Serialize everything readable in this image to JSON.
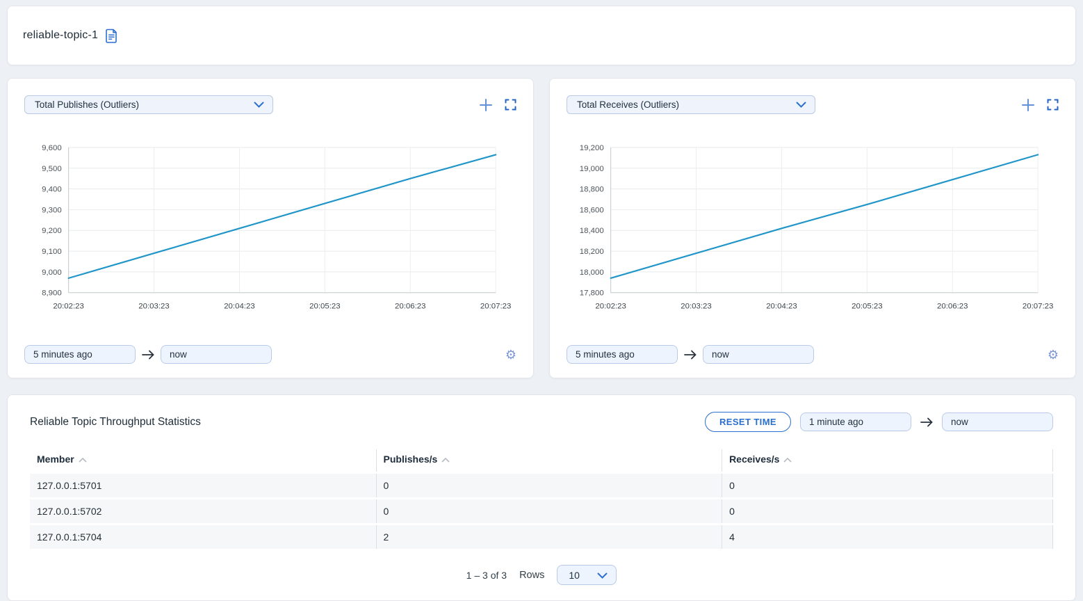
{
  "page": {
    "title": "reliable-topic-1"
  },
  "charts": [
    {
      "selector_label": "Total Publishes (Outliers)",
      "time_from": "5 minutes ago",
      "time_to": "now"
    },
    {
      "selector_label": "Total Receives (Outliers)",
      "time_from": "5 minutes ago",
      "time_to": "now"
    }
  ],
  "chart_data": [
    {
      "type": "line",
      "title": "Total Publishes (Outliers)",
      "x": [
        "20:02:23",
        "20:03:23",
        "20:04:23",
        "20:05:23",
        "20:06:23",
        "20:07:23"
      ],
      "values": [
        8970,
        9090,
        9210,
        9330,
        9450,
        9565
      ],
      "ylim": [
        8900,
        9600
      ],
      "yticks": [
        8900,
        9000,
        9100,
        9200,
        9300,
        9400,
        9500,
        9600
      ],
      "grid": true,
      "legend": false,
      "line_color": "#2095c8"
    },
    {
      "type": "line",
      "title": "Total Receives (Outliers)",
      "x": [
        "20:02:23",
        "20:03:23",
        "20:04:23",
        "20:05:23",
        "20:06:23",
        "20:07:23"
      ],
      "values": [
        17940,
        18180,
        18420,
        18650,
        18890,
        19130
      ],
      "ylim": [
        17800,
        19200
      ],
      "yticks": [
        17800,
        18000,
        18200,
        18400,
        18600,
        18800,
        19000,
        19200
      ],
      "grid": true,
      "legend": false,
      "line_color": "#2095c8"
    }
  ],
  "table_section": {
    "title": "Reliable Topic Throughput Statistics",
    "reset_button_label": "RESET TIME",
    "time_from": "1 minute ago",
    "time_to": "now",
    "columns": [
      "Member",
      "Publishes/s",
      "Receives/s"
    ],
    "rows": [
      [
        "127.0.0.1:5701",
        "0",
        "0"
      ],
      [
        "127.0.0.1:5702",
        "0",
        "0"
      ],
      [
        "127.0.0.1:5704",
        "2",
        "4"
      ]
    ],
    "pagination": {
      "range": "1 – 3 of 3",
      "rows_label": "Rows",
      "rows_per_page": "10"
    }
  },
  "colors": {
    "accent": "#2a6fce",
    "chart_line": "#2095c8",
    "pill_bg": "#eef4fd",
    "pill_border": "#b9cbe8",
    "page_bg": "#edf1f5",
    "row_bg": "#f6f7f8"
  }
}
